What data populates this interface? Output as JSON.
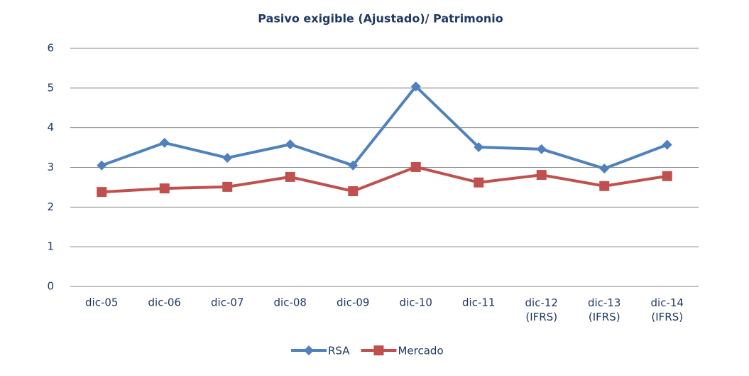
{
  "chart_data": {
    "type": "line",
    "title": "Pasivo exigible (Ajustado)/ Patrimonio",
    "categories": [
      "dic-05",
      "dic-06",
      "dic-07",
      "dic-08",
      "dic-09",
      "dic-10",
      "dic-11",
      "dic-12\n(IFRS)",
      "dic-13\n(IFRS)",
      "dic-14\n(IFRS)"
    ],
    "series": [
      {
        "name": "RSA",
        "color": "#4f81bd",
        "marker": "diamond",
        "values": [
          3.05,
          3.62,
          3.24,
          3.58,
          3.05,
          5.04,
          3.51,
          3.46,
          2.97,
          3.57
        ]
      },
      {
        "name": "Mercado",
        "color": "#c0504d",
        "marker": "square",
        "values": [
          2.38,
          2.47,
          2.51,
          2.76,
          2.4,
          3.01,
          2.62,
          2.81,
          2.53,
          2.78
        ]
      }
    ],
    "ylim": [
      0,
      6
    ],
    "yticks": [
      0,
      1,
      2,
      3,
      4,
      5,
      6
    ],
    "grid": true,
    "legend": "bottom"
  }
}
